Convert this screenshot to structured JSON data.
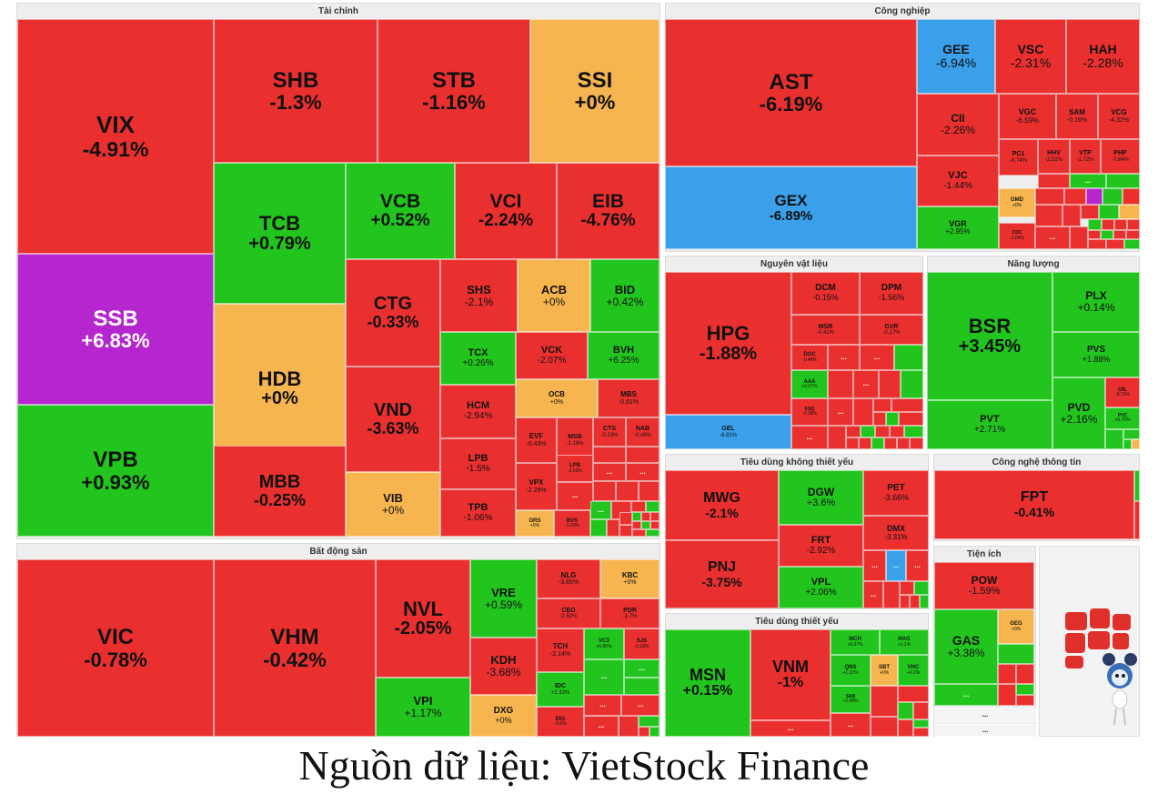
{
  "colors": {
    "down": "#e9302f",
    "up": "#22c51e",
    "ref": "#f6b54e",
    "ceiling": "#b626cf",
    "floor": "#3aa0ea"
  },
  "more_label": "...",
  "caption": "Nguồn dữ liệu: VietStock Finance",
  "chart_data": {
    "type": "treemap",
    "unit": "%",
    "sectors": [
      {
        "name": "Tài chính",
        "stocks": [
          {
            "ticker": "VIX",
            "change": "-4.91%",
            "status": "down"
          },
          {
            "ticker": "SHB",
            "change": "-1.3%",
            "status": "down"
          },
          {
            "ticker": "STB",
            "change": "-1.16%",
            "status": "down"
          },
          {
            "ticker": "SSI",
            "change": "+0%",
            "status": "ref"
          },
          {
            "ticker": "SSB",
            "change": "+6.83%",
            "status": "ceiling"
          },
          {
            "ticker": "TCB",
            "change": "+0.79%",
            "status": "up"
          },
          {
            "ticker": "VCB",
            "change": "+0.52%",
            "status": "up"
          },
          {
            "ticker": "VCI",
            "change": "-2.24%",
            "status": "down"
          },
          {
            "ticker": "EIB",
            "change": "-4.76%",
            "status": "down"
          },
          {
            "ticker": "VPB",
            "change": "+0.93%",
            "status": "up"
          },
          {
            "ticker": "HDB",
            "change": "+0%",
            "status": "ref"
          },
          {
            "ticker": "CTG",
            "change": "-0.33%",
            "status": "down"
          },
          {
            "ticker": "SHS",
            "change": "-2.1%",
            "status": "down"
          },
          {
            "ticker": "ACB",
            "change": "+0%",
            "status": "ref"
          },
          {
            "ticker": "BID",
            "change": "+0.42%",
            "status": "up"
          },
          {
            "ticker": "TCX",
            "change": "+0.26%",
            "status": "up"
          },
          {
            "ticker": "VCK",
            "change": "-2.07%",
            "status": "down"
          },
          {
            "ticker": "BVH",
            "change": "+6.25%",
            "status": "up"
          },
          {
            "ticker": "VND",
            "change": "-3.63%",
            "status": "down"
          },
          {
            "ticker": "HCM",
            "change": "-2.94%",
            "status": "down"
          },
          {
            "ticker": "OCB",
            "change": "+0%",
            "status": "ref"
          },
          {
            "ticker": "MBS",
            "change": "-0.61%",
            "status": "down"
          },
          {
            "ticker": "MBB",
            "change": "-0.25%",
            "status": "down"
          },
          {
            "ticker": "LPB",
            "change": "-1.5%",
            "status": "down"
          },
          {
            "ticker": "EVF",
            "change": "-0.43%",
            "status": "down"
          },
          {
            "ticker": "MSB",
            "change": "-1.16%",
            "status": "down"
          },
          {
            "ticker": "CTS",
            "change": "-0.23%",
            "status": "down"
          },
          {
            "ticker": "NAB",
            "change": "-0.46%",
            "status": "down"
          },
          {
            "ticker": "VIB",
            "change": "+0%",
            "status": "ref"
          },
          {
            "ticker": "TPB",
            "change": "-1.06%",
            "status": "down"
          },
          {
            "ticker": "LPB",
            "change": "-2.53%",
            "status": "down"
          },
          {
            "ticker": "VPX",
            "change": "-2.29%",
            "status": "down"
          },
          {
            "ticker": "ORS",
            "change": "+0%",
            "status": "ref"
          },
          {
            "ticker": "BVS",
            "change": "-1.09%",
            "status": "down"
          }
        ]
      },
      {
        "name": "Công nghiệp",
        "stocks": [
          {
            "ticker": "AST",
            "change": "-6.19%",
            "status": "down"
          },
          {
            "ticker": "GEE",
            "change": "-6.94%",
            "status": "floor"
          },
          {
            "ticker": "VSC",
            "change": "-2.31%",
            "status": "down"
          },
          {
            "ticker": "HAH",
            "change": "-2.28%",
            "status": "down"
          },
          {
            "ticker": "CII",
            "change": "-2.26%",
            "status": "down"
          },
          {
            "ticker": "VGC",
            "change": "-6.59%",
            "status": "down"
          },
          {
            "ticker": "SAM",
            "change": "-0.16%",
            "status": "down"
          },
          {
            "ticker": "VCG",
            "change": "-4.32%",
            "status": "down"
          },
          {
            "ticker": "PC1",
            "change": "-0.74%",
            "status": "down"
          },
          {
            "ticker": "HHV",
            "change": "-2.52%",
            "status": "down"
          },
          {
            "ticker": "VTP",
            "change": "-1.72%",
            "status": "down"
          },
          {
            "ticker": "PHP",
            "change": "-7.84%",
            "status": "down"
          },
          {
            "ticker": "GEX",
            "change": "-6.89%",
            "status": "floor"
          },
          {
            "ticker": "VJC",
            "change": "-1.44%",
            "status": "down"
          },
          {
            "ticker": "GMD",
            "change": "+0%",
            "status": "ref"
          },
          {
            "ticker": "VGR",
            "change": "+2.95%",
            "status": "up"
          },
          {
            "ticker": "CDC",
            "change": "-1.04%",
            "status": "down"
          }
        ]
      },
      {
        "name": "Nguyên vật liệu",
        "stocks": [
          {
            "ticker": "HPG",
            "change": "-1.88%",
            "status": "down"
          },
          {
            "ticker": "DCM",
            "change": "-0.15%",
            "status": "down"
          },
          {
            "ticker": "DPM",
            "change": "-1.56%",
            "status": "down"
          },
          {
            "ticker": "MSR",
            "change": "-0.41%",
            "status": "down"
          },
          {
            "ticker": "GVR",
            "change": "-0.17%",
            "status": "down"
          },
          {
            "ticker": "DGC",
            "change": "-0.48%",
            "status": "down"
          },
          {
            "ticker": "AAA",
            "change": "+0.07%",
            "status": "up"
          },
          {
            "ticker": "KSQ",
            "change": "-0.38%",
            "status": "down"
          },
          {
            "ticker": "GEL",
            "change": "-6.91%",
            "status": "floor"
          }
        ]
      },
      {
        "name": "Năng lượng",
        "stocks": [
          {
            "ticker": "BSR",
            "change": "+3.45%",
            "status": "up"
          },
          {
            "ticker": "PLX",
            "change": "+0.14%",
            "status": "up"
          },
          {
            "ticker": "PVS",
            "change": "+1.88%",
            "status": "up"
          },
          {
            "ticker": "PVT",
            "change": "+2.71%",
            "status": "up"
          },
          {
            "ticker": "PVD",
            "change": "+2.16%",
            "status": "up"
          },
          {
            "ticker": "OIL",
            "change": "-0.71%",
            "status": "down"
          },
          {
            "ticker": "PVC",
            "change": "+0.75%",
            "status": "up"
          }
        ]
      },
      {
        "name": "Tiêu dùng không thiết yếu",
        "stocks": [
          {
            "ticker": "MWG",
            "change": "-2.1%",
            "status": "down"
          },
          {
            "ticker": "DGW",
            "change": "+3.6%",
            "status": "up"
          },
          {
            "ticker": "PET",
            "change": "-3.66%",
            "status": "down"
          },
          {
            "ticker": "FRT",
            "change": "-2.92%",
            "status": "down"
          },
          {
            "ticker": "DMX",
            "change": "-3.31%",
            "status": "down"
          },
          {
            "ticker": "PNJ",
            "change": "-3.75%",
            "status": "down"
          },
          {
            "ticker": "VPL",
            "change": "+2.06%",
            "status": "up"
          }
        ]
      },
      {
        "name": "Công nghệ thông tin",
        "stocks": [
          {
            "ticker": "FPT",
            "change": "-0.41%",
            "status": "down"
          }
        ]
      },
      {
        "name": "Tiện ích",
        "stocks": [
          {
            "ticker": "POW",
            "change": "-1.59%",
            "status": "down"
          },
          {
            "ticker": "GAS",
            "change": "+3.38%",
            "status": "up"
          },
          {
            "ticker": "GEG",
            "change": "+0%",
            "status": "ref"
          }
        ]
      },
      {
        "name": "Tiêu dùng thiết yếu",
        "stocks": [
          {
            "ticker": "MSN",
            "change": "+0.15%",
            "status": "up"
          },
          {
            "ticker": "VNM",
            "change": "-1%",
            "status": "down"
          },
          {
            "ticker": "MCH",
            "change": "+0.07%",
            "status": "up"
          },
          {
            "ticker": "HAG",
            "change": "+1.1%",
            "status": "up"
          },
          {
            "ticker": "QNS",
            "change": "+1.22%",
            "status": "up"
          },
          {
            "ticker": "SBT",
            "change": "+0%",
            "status": "ref"
          },
          {
            "ticker": "VHC",
            "change": "+0.2%",
            "status": "up"
          },
          {
            "ticker": "SAB",
            "change": "+2.08%",
            "status": "up"
          }
        ]
      },
      {
        "name": "Bất động sản",
        "stocks": [
          {
            "ticker": "VIC",
            "change": "-0.78%",
            "status": "down"
          },
          {
            "ticker": "VHM",
            "change": "-0.42%",
            "status": "down"
          },
          {
            "ticker": "NVL",
            "change": "-2.05%",
            "status": "down"
          },
          {
            "ticker": "VRE",
            "change": "+0.59%",
            "status": "up"
          },
          {
            "ticker": "NLG",
            "change": "-3.85%",
            "status": "down"
          },
          {
            "ticker": "KBC",
            "change": "+0%",
            "status": "ref"
          },
          {
            "ticker": "CEO",
            "change": "-2.52%",
            "status": "down"
          },
          {
            "ticker": "PDR",
            "change": "-1.7%",
            "status": "down"
          },
          {
            "ticker": "KDH",
            "change": "-3.68%",
            "status": "down"
          },
          {
            "ticker": "TCH",
            "change": "-2.14%",
            "status": "down"
          },
          {
            "ticker": "VC3",
            "change": "+0.86%",
            "status": "up"
          },
          {
            "ticker": "SJS",
            "change": "-0.18%",
            "status": "down"
          },
          {
            "ticker": "VPI",
            "change": "+1.17%",
            "status": "up"
          },
          {
            "ticker": "IDC",
            "change": "+2.33%",
            "status": "up"
          },
          {
            "ticker": "DXG",
            "change": "+0%",
            "status": "ref"
          },
          {
            "ticker": "DIG",
            "change": "-0.6%",
            "status": "down"
          }
        ]
      }
    ]
  }
}
